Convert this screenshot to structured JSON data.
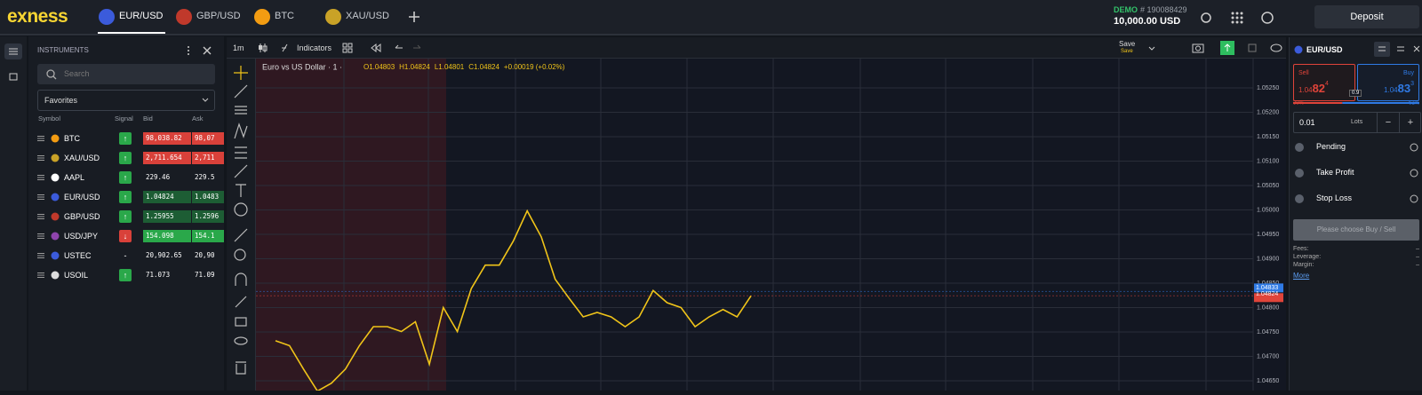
{
  "header": {
    "logo": "exness",
    "tabs": [
      "EUR/USD",
      "GBP/USD",
      "BTC",
      "XAU/USD"
    ],
    "active_tab": 0,
    "account_type": "DEMO",
    "account_number": "# 190088429",
    "balance": "10,000.00 USD",
    "deposit": "Deposit"
  },
  "instruments": {
    "title": "INSTRUMENTS",
    "search": "Search",
    "filter": "Favorites",
    "columns": [
      "Symbol",
      "Signal",
      "Bid",
      "Ask"
    ],
    "rows": [
      {
        "symbol": "BTC",
        "signal": "↑",
        "bid": "98,038.82",
        "ask": "98,07",
        "trend": "down"
      },
      {
        "symbol": "XAU/USD",
        "signal": "↑",
        "bid": "2,711.654",
        "ask": "2,711",
        "trend": "down"
      },
      {
        "symbol": "AAPL",
        "signal": "↑",
        "bid": "229.46",
        "ask": "229.5",
        "trend": "flat"
      },
      {
        "symbol": "EUR/USD",
        "signal": "↑",
        "bid": "1.04824",
        "ask": "1.0483",
        "trend": "up"
      },
      {
        "symbol": "GBP/USD",
        "signal": "↑",
        "bid": "1.25955",
        "ask": "1.2596",
        "trend": "up"
      },
      {
        "symbol": "USD/JPY",
        "signal": "↓",
        "bid": "154.098",
        "ask": "154.1",
        "trend": "strong-up"
      },
      {
        "symbol": "USTEC",
        "signal": "-",
        "bid": "20,902.65",
        "ask": "20,90",
        "trend": "flat"
      },
      {
        "symbol": "USOIL",
        "signal": "↑",
        "bid": "71.073",
        "ask": "71.09",
        "trend": "flat"
      }
    ]
  },
  "toolbar": {
    "timeframe": "1m",
    "indicators": "Indicators",
    "save": "Save",
    "save_status": "Save"
  },
  "chart": {
    "type": "line",
    "title": "Euro vs US Dollar · 1 ·",
    "legend": [
      "O1.04803",
      "H1.04824",
      "L1.04801",
      "C1.04824",
      "+0.00019 (+0.02%)"
    ],
    "color": "#f0c419",
    "values": [
      1.04732,
      1.04722,
      1.04674,
      1.04629,
      1.04645,
      1.04674,
      1.04722,
      1.04761,
      1.04761,
      1.04751,
      1.04771,
      1.04684,
      1.048,
      1.04751,
      1.04839,
      1.04887,
      1.04887,
      1.04936,
      1.04998,
      1.04945,
      1.04858,
      1.04819,
      1.04781,
      1.0479,
      1.04781,
      1.04761,
      1.04781,
      1.04835,
      1.0481,
      1.048,
      1.04761,
      1.04781,
      1.04796,
      1.04781,
      1.04824
    ],
    "ylim": [
      1.0459,
      1.0527
    ],
    "yticks": [
      {
        "value": 1.046,
        "label": "1.04600"
      },
      {
        "value": 1.0465,
        "label": "1.04650"
      },
      {
        "value": 1.047,
        "label": "1.04700"
      },
      {
        "value": 1.0475,
        "label": "1.04750"
      },
      {
        "value": 1.048,
        "label": "1.04800"
      },
      {
        "value": 1.0485,
        "label": "1.04850"
      },
      {
        "value": 1.049,
        "label": "1.04900"
      },
      {
        "value": 1.0495,
        "label": "1.04950"
      },
      {
        "value": 1.05,
        "label": "1.05000"
      },
      {
        "value": 1.0505,
        "label": "1.05050"
      },
      {
        "value": 1.051,
        "label": "1.05100"
      },
      {
        "value": 1.0515,
        "label": "1.05150"
      },
      {
        "value": 1.052,
        "label": "1.05200"
      },
      {
        "value": 1.0525,
        "label": "1.05250"
      }
    ],
    "ask_price": {
      "value": 1.04833,
      "label": "1.04833"
    },
    "bid_price": {
      "value": 1.04824,
      "label": "1.04824"
    },
    "grid": true
  },
  "order": {
    "symbol": "EUR/USD",
    "sell": "Sell",
    "sell_price": [
      "1.04",
      "82",
      "4"
    ],
    "buy": "Buy",
    "buy_price": [
      "1.04",
      "83",
      "3"
    ],
    "spread": "0.9",
    "sell_share": {
      "value": 39,
      "label": "39%"
    },
    "buy_share": {
      "value": 61,
      "label": "61%"
    },
    "volume": "0.01",
    "unit": "Lots",
    "minus": "−",
    "plus": "+",
    "options": [
      "Pending",
      "Take Profit",
      "Stop Loss"
    ],
    "button": "Please choose Buy / Sell",
    "info": [
      {
        "label": "Fees:",
        "value": "–"
      },
      {
        "label": "Leverage:",
        "value": "–"
      },
      {
        "label": "Margin:",
        "value": "–"
      }
    ],
    "more": "More"
  }
}
